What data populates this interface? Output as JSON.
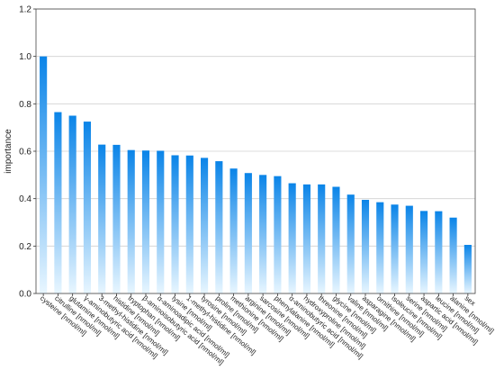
{
  "chart_data": {
    "type": "bar",
    "ylabel": "importance",
    "ylim": [
      0,
      1.2
    ],
    "yticks": [
      "0.0",
      "0.2",
      "0.4",
      "0.6",
      "0.8",
      "1.0",
      "1.2"
    ],
    "grid": true,
    "bar_color_top": "#0a84e8",
    "bar_color_bottom": "#e8f6ff",
    "categories": [
      "cysteine [nmol/ml]",
      "citrulline [nmol/ml]",
      "glutamine [nmol/ml]",
      "γ-aminobutyric acid [nmol/ml]",
      "3-methyl-histidine [nmol/ml]",
      "histidine [nmol/ml]",
      "tryptophan [nmol/ml]",
      "β-aminoisobutyric acid [nmol/ml]",
      "α-aminoadipic acid [nmol/ml]",
      "lysine [nmol/ml]",
      "1-methyl-histidine [nmol/ml]",
      "tyrosine [nmol/ml]",
      "proline [nmol/ml]",
      "methionine [nmol/ml]",
      "arginine [nmol/ml]",
      "sarcosine [nmol/ml]",
      "phenylalanine [nmol/ml]",
      "α-aminobutyric acid [nmol/ml]",
      "hydroxyproline [nmol/ml]",
      "threonine [nmol/ml]",
      "glycine [nmol/ml]",
      "valine [nmol/ml]",
      "asparagine [nmol/ml]",
      "ornithine [nmol/ml]",
      "isoleucine [nmol/ml]",
      "serine [nmol/ml]",
      "aspartic acid [nmol/ml]",
      "leucine [nmol/ml]",
      "alanine [nmol/ml]",
      "sex"
    ],
    "values": [
      1.0,
      0.765,
      0.75,
      0.725,
      0.628,
      0.627,
      0.605,
      0.603,
      0.602,
      0.583,
      0.582,
      0.572,
      0.558,
      0.527,
      0.508,
      0.5,
      0.495,
      0.465,
      0.46,
      0.46,
      0.45,
      0.417,
      0.395,
      0.385,
      0.375,
      0.37,
      0.348,
      0.347,
      0.32,
      0.205
    ]
  }
}
